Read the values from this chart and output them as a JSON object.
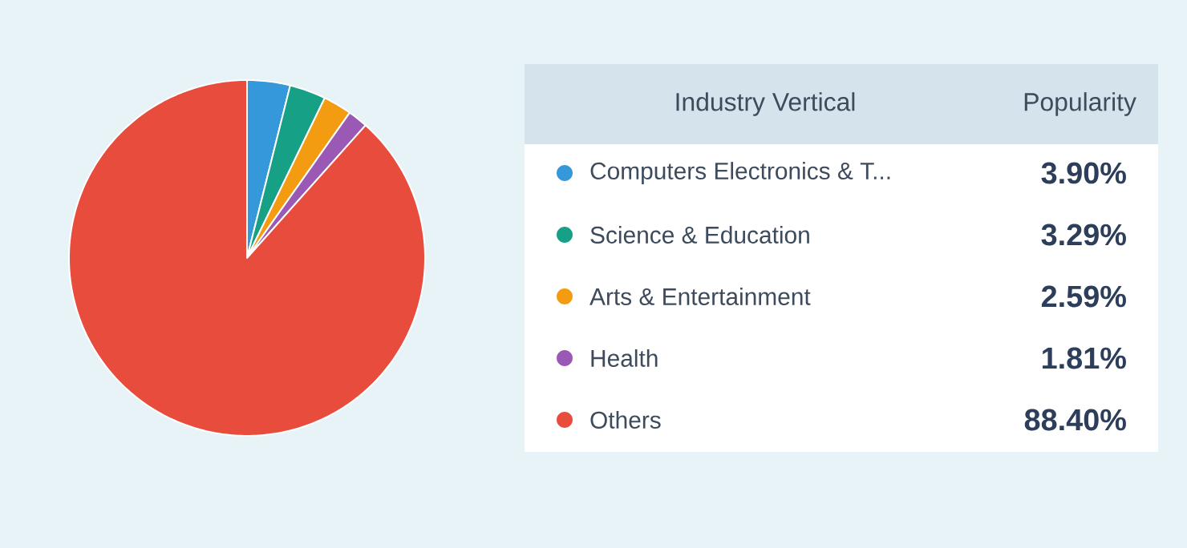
{
  "chart_data": {
    "type": "pie",
    "legend_title": "Industry Vertical",
    "annotations": [
      "Popularity"
    ],
    "legend": "right",
    "categories": [
      "Computers Electronics & T...",
      "Science & Education",
      "Arts & Entertainment",
      "Health",
      "Others"
    ],
    "values": [
      3.9,
      3.29,
      2.59,
      1.81,
      88.4
    ],
    "value_labels": [
      "3.90%",
      "3.29%",
      "2.59%",
      "1.81%",
      "88.40%"
    ],
    "colors": [
      "#3498db",
      "#16a085",
      "#f39c12",
      "#9b59b6",
      "#e74c3c"
    ]
  }
}
